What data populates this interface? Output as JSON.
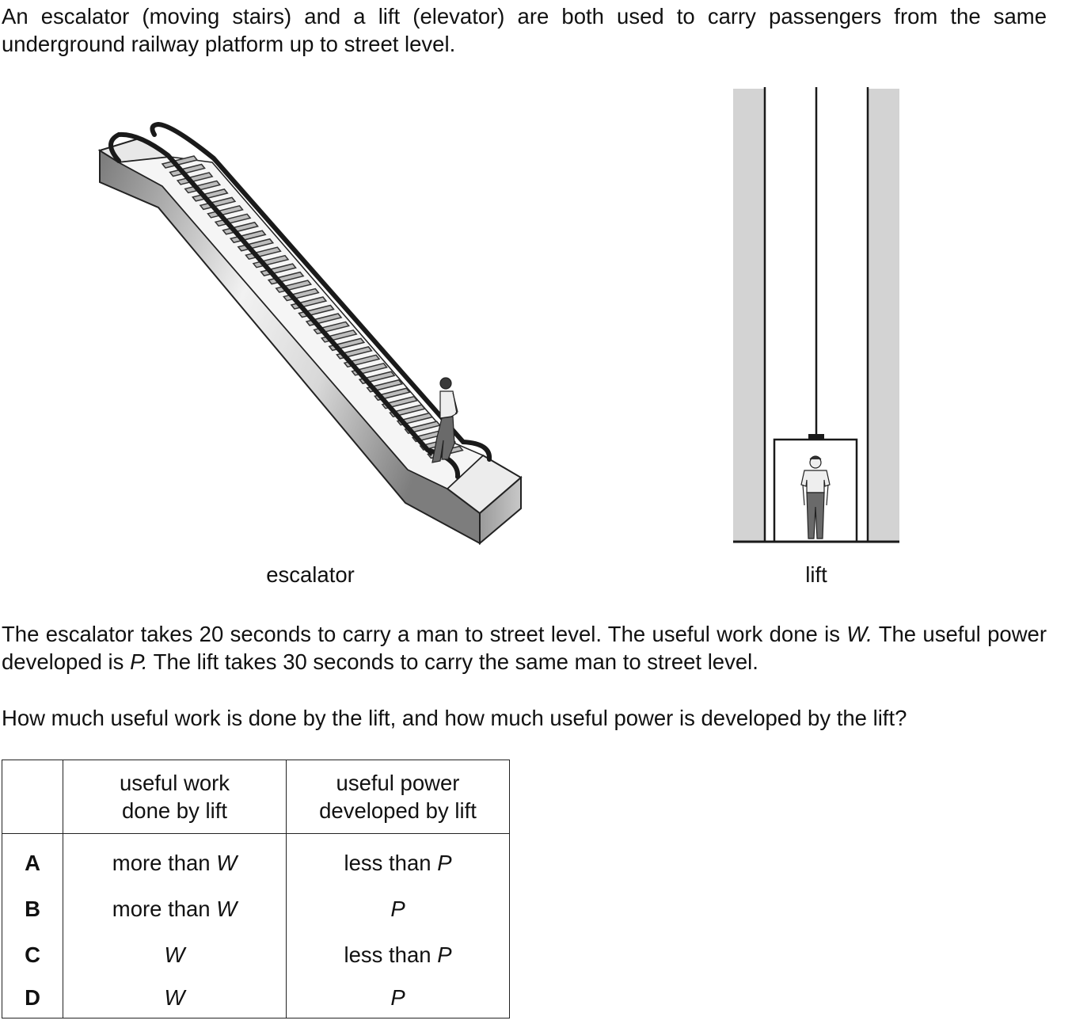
{
  "intro_text": "An escalator (moving stairs) and a lift (elevator) are both used to carry passengers from the same underground railway platform up to street level.",
  "figures": {
    "escalator_caption": "escalator",
    "lift_caption": "lift"
  },
  "info": {
    "part1": "The escalator takes 20 seconds to carry a man to street level. The useful work done is ",
    "W": "W.",
    "part2": " The useful power developed is ",
    "P": "P.",
    "part3": " The lift takes 30 seconds to carry the same man to street level."
  },
  "question_text": "How much useful work is done by the lift, and how much useful power is developed by the lift?",
  "table": {
    "header_work": "useful work\ndone by lift",
    "header_power": "useful power\ndeveloped by lift",
    "rows": [
      {
        "letter": "A",
        "work_prefix": "more than ",
        "work_symbol": "W",
        "power_prefix": "less than ",
        "power_symbol": "P"
      },
      {
        "letter": "B",
        "work_prefix": "more than ",
        "work_symbol": "W",
        "power_prefix": "",
        "power_symbol": "P"
      },
      {
        "letter": "C",
        "work_prefix": "",
        "work_symbol": "W",
        "power_prefix": "less than ",
        "power_symbol": "P"
      },
      {
        "letter": "D",
        "work_prefix": "",
        "work_symbol": "W",
        "power_prefix": "",
        "power_symbol": "P"
      }
    ]
  }
}
